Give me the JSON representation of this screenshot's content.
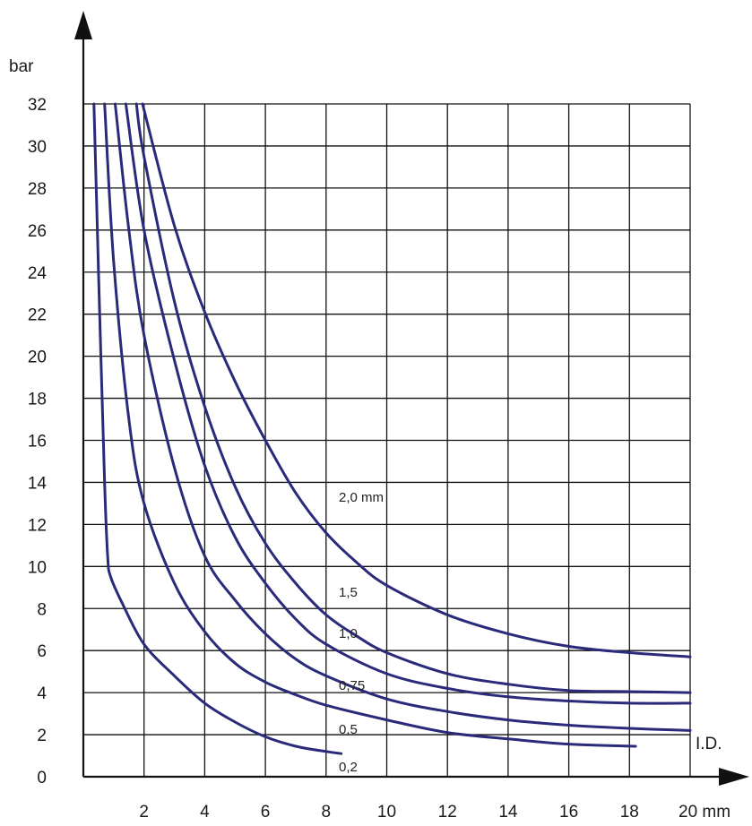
{
  "chart_data": {
    "type": "line",
    "xlabel": "I.D.",
    "x_unit_label": "20 mm",
    "ylabel": "bar",
    "xlim": [
      0,
      20
    ],
    "ylim": [
      0,
      32
    ],
    "x_ticks": [
      "2",
      "4",
      "6",
      "8",
      "10",
      "12",
      "14",
      "16",
      "18"
    ],
    "y_ticks": [
      "0",
      "2",
      "4",
      "6",
      "8",
      "10",
      "12",
      "14",
      "16",
      "18",
      "20",
      "22",
      "24",
      "26",
      "28",
      "30",
      "32"
    ],
    "grid": true,
    "line_color": "#2a2a7a",
    "series": [
      {
        "name": "0,2",
        "x": [
          0.35,
          0.5,
          0.7,
          0.8,
          0.9,
          1.3,
          2,
          3,
          4,
          5,
          6,
          7,
          8,
          8.5
        ],
        "y": [
          32,
          24,
          14,
          10.5,
          9.5,
          8.2,
          6.3,
          4.8,
          3.5,
          2.6,
          1.9,
          1.45,
          1.2,
          1.1
        ]
      },
      {
        "name": "0,5",
        "x": [
          0.7,
          1,
          1.5,
          2,
          3,
          4,
          5,
          6,
          7,
          8,
          10,
          12,
          14,
          16,
          18.2
        ],
        "y": [
          32,
          24.5,
          17,
          13,
          9.2,
          6.9,
          5.4,
          4.5,
          3.9,
          3.4,
          2.7,
          2.1,
          1.8,
          1.55,
          1.45
        ]
      },
      {
        "name": "0,75",
        "x": [
          1.05,
          1.5,
          2,
          3,
          4,
          5,
          6,
          7,
          8,
          10,
          12,
          14,
          16,
          18,
          20
        ],
        "y": [
          32,
          26,
          21,
          14.7,
          10.5,
          8.4,
          6.8,
          5.6,
          4.8,
          3.7,
          3.1,
          2.7,
          2.45,
          2.3,
          2.2
        ]
      },
      {
        "name": "1,0",
        "x": [
          1.4,
          2,
          3,
          4,
          5,
          6,
          7,
          8,
          10,
          12,
          14,
          16,
          18,
          20
        ],
        "y": [
          32,
          26,
          19.8,
          14.8,
          11.4,
          9.2,
          7.5,
          6.3,
          4.9,
          4.2,
          3.8,
          3.6,
          3.5,
          3.5
        ]
      },
      {
        "name": "1,5",
        "x": [
          1.75,
          2,
          3,
          4,
          5,
          6,
          7,
          8,
          9,
          10,
          12,
          14,
          16,
          18,
          20
        ],
        "y": [
          32,
          29.5,
          22.6,
          17.6,
          13.8,
          11.1,
          9.2,
          7.7,
          6.7,
          5.9,
          4.9,
          4.4,
          4.1,
          4.05,
          4.0
        ]
      },
      {
        "name": "2,0 mm",
        "x": [
          1.95,
          3,
          4,
          5,
          6,
          7,
          8,
          9,
          10,
          12,
          14,
          16,
          18,
          20
        ],
        "y": [
          32,
          26.2,
          22.1,
          18.8,
          16,
          13.5,
          11.6,
          10.2,
          9.1,
          7.7,
          6.8,
          6.2,
          5.9,
          5.7
        ]
      }
    ],
    "curve_labels": [
      "2,0 mm",
      "1,5",
      "1,0",
      "0,75",
      "0,5",
      "0,2"
    ]
  }
}
